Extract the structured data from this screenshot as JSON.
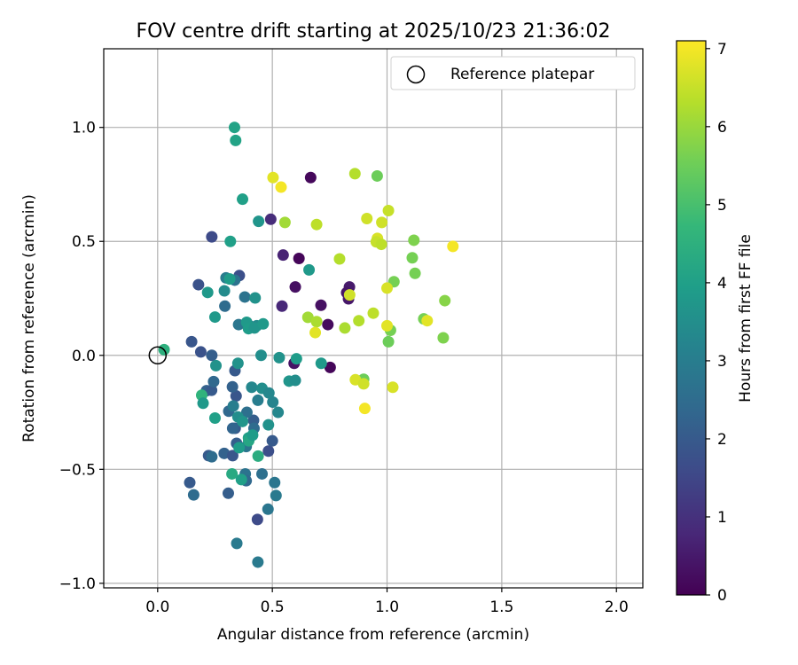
{
  "chart_data": {
    "type": "scatter",
    "title": "FOV centre drift starting at 2025/10/23 21:36:02",
    "xlabel": "Angular distance from reference (arcmin)",
    "ylabel": "Rotation from reference (arcmin)",
    "xlim": [
      -0.235,
      2.115
    ],
    "ylim": [
      -1.02,
      1.345
    ],
    "xticks": [
      0.0,
      0.5,
      1.0,
      1.5,
      2.0
    ],
    "xtick_labels": [
      "0.0",
      "0.5",
      "1.0",
      "1.5",
      "2.0"
    ],
    "yticks": [
      -1.0,
      -0.5,
      0.0,
      0.5,
      1.0
    ],
    "ytick_labels": [
      "−1.0",
      "−0.5",
      "0.0",
      "0.5",
      "1.0"
    ],
    "grid": true,
    "legend": {
      "label": "Reference platepar",
      "placement": "top-right"
    },
    "reference_point": {
      "x": 0.0,
      "y": 0.0
    },
    "colorbar": {
      "label": "Hours from first FF file",
      "min": 0,
      "max": 7.1,
      "ticks": [
        0,
        1,
        2,
        3,
        4,
        5,
        6,
        7
      ],
      "tick_labels": [
        "0",
        "1",
        "2",
        "3",
        "4",
        "5",
        "6",
        "7"
      ],
      "colormap": [
        "#440154",
        "#482878",
        "#3e4a89",
        "#31688e",
        "#26828e",
        "#1f9e89",
        "#35b779",
        "#6ece58",
        "#b5de2b",
        "#fde725"
      ]
    },
    "points": [
      {
        "x": 0.667,
        "y": 0.78,
        "h": 0.15
      },
      {
        "x": 0.616,
        "y": 0.425,
        "h": 0.1
      },
      {
        "x": 0.712,
        "y": 0.22,
        "h": 0.3
      },
      {
        "x": 0.752,
        "y": -0.053,
        "h": 0.1
      },
      {
        "x": 0.742,
        "y": 0.135,
        "h": 0.2
      },
      {
        "x": 0.595,
        "y": -0.035,
        "h": 0.35
      },
      {
        "x": 0.6,
        "y": 0.3,
        "h": 0.3
      },
      {
        "x": 0.836,
        "y": 0.3,
        "h": 0.5
      },
      {
        "x": 0.824,
        "y": 0.275,
        "h": 0.4
      },
      {
        "x": 0.832,
        "y": 0.248,
        "h": 0.45
      },
      {
        "x": 0.547,
        "y": 0.44,
        "h": 0.7
      },
      {
        "x": 0.542,
        "y": 0.216,
        "h": 0.8
      },
      {
        "x": 0.493,
        "y": 0.597,
        "h": 0.9
      },
      {
        "x": 0.236,
        "y": 0.52,
        "h": 1.6
      },
      {
        "x": 0.356,
        "y": 0.35,
        "h": 1.7
      },
      {
        "x": 0.178,
        "y": 0.31,
        "h": 1.8
      },
      {
        "x": 0.148,
        "y": 0.06,
        "h": 1.9
      },
      {
        "x": 0.188,
        "y": 0.015,
        "h": 1.8
      },
      {
        "x": 0.236,
        "y": 0.0,
        "h": 2.1
      },
      {
        "x": 0.213,
        "y": -0.155,
        "h": 2.2
      },
      {
        "x": 0.235,
        "y": -0.153,
        "h": 2.0
      },
      {
        "x": 0.244,
        "y": -0.115,
        "h": 2.4
      },
      {
        "x": 0.342,
        "y": -0.178,
        "h": 1.9
      },
      {
        "x": 0.326,
        "y": -0.138,
        "h": 2.2
      },
      {
        "x": 0.337,
        "y": -0.067,
        "h": 2.0
      },
      {
        "x": 0.31,
        "y": -0.245,
        "h": 2.4
      },
      {
        "x": 0.338,
        "y": -0.32,
        "h": 2.0
      },
      {
        "x": 0.327,
        "y": -0.32,
        "h": 2.3
      },
      {
        "x": 0.344,
        "y": -0.386,
        "h": 2.1
      },
      {
        "x": 0.29,
        "y": -0.43,
        "h": 2.2
      },
      {
        "x": 0.222,
        "y": -0.44,
        "h": 2.0
      },
      {
        "x": 0.236,
        "y": -0.445,
        "h": 2.5
      },
      {
        "x": 0.327,
        "y": -0.44,
        "h": 1.9
      },
      {
        "x": 0.14,
        "y": -0.558,
        "h": 2.0
      },
      {
        "x": 0.157,
        "y": -0.612,
        "h": 2.5
      },
      {
        "x": 0.308,
        "y": -0.605,
        "h": 2.1
      },
      {
        "x": 0.435,
        "y": -0.72,
        "h": 1.6
      },
      {
        "x": 0.481,
        "y": -0.675,
        "h": 2.8
      },
      {
        "x": 0.455,
        "y": -0.52,
        "h": 2.6
      },
      {
        "x": 0.483,
        "y": -0.42,
        "h": 1.7
      },
      {
        "x": 0.5,
        "y": -0.375,
        "h": 2.0
      },
      {
        "x": 0.418,
        "y": -0.285,
        "h": 2.1
      },
      {
        "x": 0.42,
        "y": -0.32,
        "h": 2.5
      },
      {
        "x": 0.382,
        "y": -0.52,
        "h": 2.7
      },
      {
        "x": 0.386,
        "y": -0.55,
        "h": 2.4
      },
      {
        "x": 0.345,
        "y": -0.825,
        "h": 2.9
      },
      {
        "x": 0.437,
        "y": -0.907,
        "h": 2.9
      },
      {
        "x": 0.51,
        "y": -0.558,
        "h": 2.8
      },
      {
        "x": 0.516,
        "y": -0.615,
        "h": 2.9
      },
      {
        "x": 0.389,
        "y": -0.25,
        "h": 2.6
      },
      {
        "x": 0.386,
        "y": -0.4,
        "h": 2.8
      },
      {
        "x": 0.4,
        "y": 0.13,
        "h": 2.8
      },
      {
        "x": 0.353,
        "y": 0.135,
        "h": 2.8
      },
      {
        "x": 0.432,
        "y": 0.13,
        "h": 3.4
      },
      {
        "x": 0.38,
        "y": 0.256,
        "h": 2.7
      },
      {
        "x": 0.293,
        "y": 0.216,
        "h": 2.5
      },
      {
        "x": 0.298,
        "y": 0.34,
        "h": 3.0
      },
      {
        "x": 0.336,
        "y": 0.33,
        "h": 2.7
      },
      {
        "x": 0.35,
        "y": -0.035,
        "h": 3.6
      },
      {
        "x": 0.41,
        "y": -0.14,
        "h": 3.3
      },
      {
        "x": 0.455,
        "y": -0.145,
        "h": 3.5
      },
      {
        "x": 0.437,
        "y": -0.197,
        "h": 3.0
      },
      {
        "x": 0.502,
        "y": -0.205,
        "h": 3.2
      },
      {
        "x": 0.485,
        "y": -0.165,
        "h": 3.3
      },
      {
        "x": 0.525,
        "y": -0.25,
        "h": 3.3
      },
      {
        "x": 0.483,
        "y": -0.305,
        "h": 3.6
      },
      {
        "x": 0.33,
        "y": -0.222,
        "h": 3.0
      },
      {
        "x": 0.35,
        "y": -0.27,
        "h": 3.5
      },
      {
        "x": 0.37,
        "y": -0.29,
        "h": 3.7
      },
      {
        "x": 0.396,
        "y": -0.362,
        "h": 4.0
      },
      {
        "x": 0.355,
        "y": -0.405,
        "h": 3.9
      },
      {
        "x": 0.397,
        "y": -0.375,
        "h": 4.2
      },
      {
        "x": 0.414,
        "y": -0.35,
        "h": 3.9
      },
      {
        "x": 0.53,
        "y": -0.01,
        "h": 3.6
      },
      {
        "x": 0.573,
        "y": -0.113,
        "h": 3.7
      },
      {
        "x": 0.6,
        "y": -0.11,
        "h": 3.5
      },
      {
        "x": 0.605,
        "y": -0.015,
        "h": 3.9
      },
      {
        "x": 0.451,
        "y": 0.0,
        "h": 3.5
      },
      {
        "x": 0.425,
        "y": 0.252,
        "h": 3.6
      },
      {
        "x": 0.44,
        "y": 0.588,
        "h": 3.7
      },
      {
        "x": 0.66,
        "y": 0.375,
        "h": 3.8
      },
      {
        "x": 0.713,
        "y": -0.035,
        "h": 3.8
      },
      {
        "x": 0.254,
        "y": -0.045,
        "h": 3.6
      },
      {
        "x": 0.25,
        "y": 0.168,
        "h": 3.8
      },
      {
        "x": 0.218,
        "y": 0.276,
        "h": 3.8
      },
      {
        "x": 0.291,
        "y": 0.283,
        "h": 3.4
      },
      {
        "x": 0.314,
        "y": 0.335,
        "h": 3.9
      },
      {
        "x": 0.317,
        "y": 0.5,
        "h": 4.0
      },
      {
        "x": 0.388,
        "y": 0.145,
        "h": 3.8
      },
      {
        "x": 0.396,
        "y": 0.117,
        "h": 3.9
      },
      {
        "x": 0.422,
        "y": 0.12,
        "h": 3.7
      },
      {
        "x": 0.46,
        "y": 0.138,
        "h": 3.8
      },
      {
        "x": 0.37,
        "y": 0.685,
        "h": 4.0
      },
      {
        "x": 0.335,
        "y": 1.0,
        "h": 4.1
      },
      {
        "x": 0.34,
        "y": 0.943,
        "h": 4.1
      },
      {
        "x": 0.25,
        "y": -0.275,
        "h": 4.0
      },
      {
        "x": 0.365,
        "y": -0.545,
        "h": 4.0
      },
      {
        "x": 0.324,
        "y": -0.52,
        "h": 4.3
      },
      {
        "x": 0.438,
        "y": -0.442,
        "h": 4.4
      },
      {
        "x": 0.028,
        "y": 0.025,
        "h": 4.5
      },
      {
        "x": 0.192,
        "y": -0.175,
        "h": 4.6
      },
      {
        "x": 0.198,
        "y": -0.21,
        "h": 3.8
      },
      {
        "x": 0.898,
        "y": -0.105,
        "h": 5.5
      },
      {
        "x": 0.957,
        "y": 0.787,
        "h": 5.5
      },
      {
        "x": 1.015,
        "y": 0.11,
        "h": 5.6
      },
      {
        "x": 1.006,
        "y": 0.06,
        "h": 5.5
      },
      {
        "x": 1.117,
        "y": 0.505,
        "h": 5.7
      },
      {
        "x": 1.11,
        "y": 0.428,
        "h": 5.6
      },
      {
        "x": 1.122,
        "y": 0.36,
        "h": 5.6
      },
      {
        "x": 1.03,
        "y": 0.323,
        "h": 5.6
      },
      {
        "x": 1.16,
        "y": 0.16,
        "h": 5.6
      },
      {
        "x": 1.245,
        "y": 0.077,
        "h": 5.7
      },
      {
        "x": 1.252,
        "y": 0.24,
        "h": 5.8
      },
      {
        "x": 0.555,
        "y": 0.583,
        "h": 6.1
      },
      {
        "x": 0.655,
        "y": 0.167,
        "h": 6.1
      },
      {
        "x": 0.693,
        "y": 0.148,
        "h": 6.2
      },
      {
        "x": 0.793,
        "y": 0.423,
        "h": 6.3
      },
      {
        "x": 0.693,
        "y": 0.574,
        "h": 6.4
      },
      {
        "x": 0.816,
        "y": 0.12,
        "h": 6.2
      },
      {
        "x": 0.877,
        "y": 0.152,
        "h": 6.3
      },
      {
        "x": 0.837,
        "y": 0.265,
        "h": 6.6
      },
      {
        "x": 0.94,
        "y": 0.185,
        "h": 6.4
      },
      {
        "x": 0.86,
        "y": 0.797,
        "h": 6.3
      },
      {
        "x": 0.912,
        "y": 0.6,
        "h": 6.6
      },
      {
        "x": 0.958,
        "y": 0.513,
        "h": 6.7
      },
      {
        "x": 0.953,
        "y": 0.498,
        "h": 6.5
      },
      {
        "x": 0.977,
        "y": 0.583,
        "h": 6.6
      },
      {
        "x": 0.975,
        "y": 0.487,
        "h": 6.4
      },
      {
        "x": 1.006,
        "y": 0.635,
        "h": 6.5
      },
      {
        "x": 0.503,
        "y": 0.78,
        "h": 6.8
      },
      {
        "x": 0.538,
        "y": 0.738,
        "h": 7.0
      },
      {
        "x": 0.687,
        "y": 0.1,
        "h": 6.8
      },
      {
        "x": 0.862,
        "y": -0.107,
        "h": 6.7
      },
      {
        "x": 0.898,
        "y": -0.125,
        "h": 6.6
      },
      {
        "x": 1.025,
        "y": -0.14,
        "h": 6.7
      },
      {
        "x": 0.903,
        "y": -0.233,
        "h": 7.0
      },
      {
        "x": 1.0,
        "y": 0.295,
        "h": 6.7
      },
      {
        "x": 1.0,
        "y": 0.13,
        "h": 6.8
      },
      {
        "x": 1.175,
        "y": 0.152,
        "h": 6.8
      },
      {
        "x": 1.287,
        "y": 0.478,
        "h": 7.0
      }
    ]
  }
}
